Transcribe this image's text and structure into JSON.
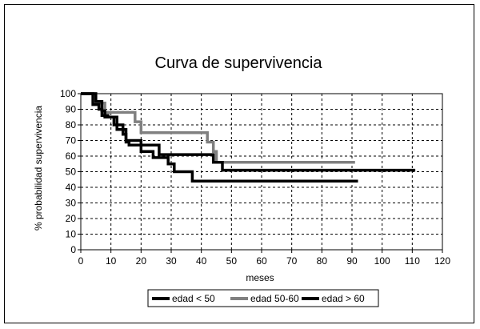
{
  "chart_data": {
    "type": "line",
    "step": true,
    "title": "Curva de supervivencia",
    "xlabel": "meses",
    "ylabel": "% probabilidad supervivencia",
    "xlim": [
      0,
      120
    ],
    "ylim": [
      0,
      100
    ],
    "xticks": [
      0,
      10,
      20,
      30,
      40,
      50,
      60,
      70,
      80,
      90,
      100,
      110,
      120
    ],
    "yticks": [
      0,
      10,
      20,
      30,
      40,
      50,
      60,
      70,
      80,
      90,
      100
    ],
    "grid": true,
    "legend_position": "bottom-right",
    "series": [
      {
        "name": "edad < 50",
        "color": "#000000",
        "points": [
          [
            0,
            100
          ],
          [
            5,
            100
          ],
          [
            5,
            95
          ],
          [
            7,
            95
          ],
          [
            7,
            89
          ],
          [
            8,
            89
          ],
          [
            8,
            85
          ],
          [
            11,
            85
          ],
          [
            11,
            80
          ],
          [
            14,
            80
          ],
          [
            14,
            74
          ],
          [
            15,
            74
          ],
          [
            15,
            69
          ],
          [
            16,
            69
          ],
          [
            16,
            67
          ],
          [
            26,
            67
          ],
          [
            26,
            61
          ],
          [
            44,
            61
          ],
          [
            44,
            56
          ],
          [
            47,
            56
          ],
          [
            47,
            51
          ],
          [
            111,
            51
          ]
        ]
      },
      {
        "name": "edad 50-60",
        "color": "#808080",
        "points": [
          [
            0,
            100
          ],
          [
            5,
            100
          ],
          [
            5,
            94
          ],
          [
            8,
            94
          ],
          [
            8,
            88
          ],
          [
            18,
            88
          ],
          [
            18,
            82
          ],
          [
            20,
            82
          ],
          [
            20,
            75
          ],
          [
            42,
            75
          ],
          [
            42,
            69
          ],
          [
            44,
            69
          ],
          [
            44,
            63
          ],
          [
            45,
            63
          ],
          [
            45,
            56
          ],
          [
            91,
            56
          ]
        ]
      },
      {
        "name": "edad > 60",
        "color": "#000000",
        "points": [
          [
            0,
            100
          ],
          [
            4,
            100
          ],
          [
            4,
            93
          ],
          [
            6,
            93
          ],
          [
            6,
            90
          ],
          [
            7,
            90
          ],
          [
            7,
            86
          ],
          [
            9,
            86
          ],
          [
            9,
            85
          ],
          [
            12,
            85
          ],
          [
            12,
            77
          ],
          [
            15,
            77
          ],
          [
            15,
            70
          ],
          [
            20,
            70
          ],
          [
            20,
            63
          ],
          [
            24,
            63
          ],
          [
            24,
            59
          ],
          [
            29,
            59
          ],
          [
            29,
            55
          ],
          [
            31,
            55
          ],
          [
            31,
            50
          ],
          [
            37,
            50
          ],
          [
            37,
            44
          ],
          [
            92,
            44
          ]
        ]
      }
    ]
  }
}
